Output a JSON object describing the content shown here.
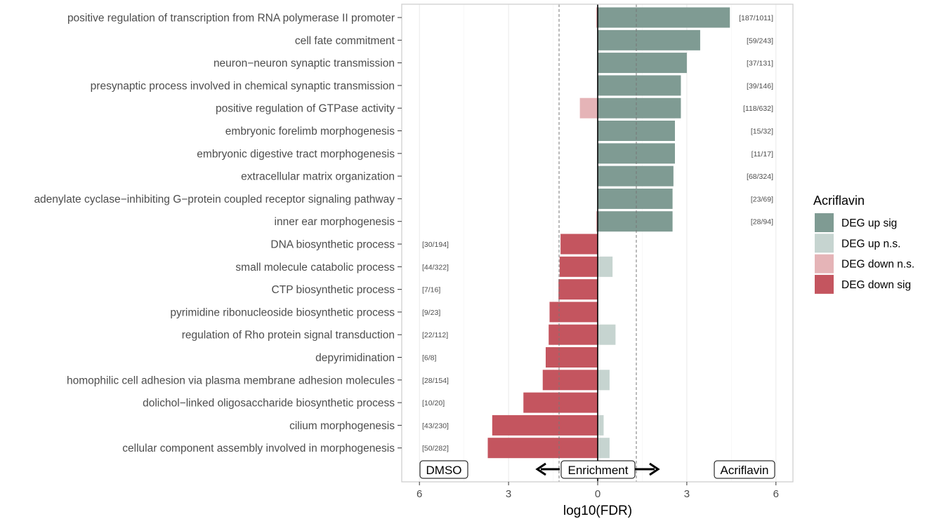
{
  "chart_data": {
    "type": "bar",
    "orientation": "horizontal",
    "xlabel": "log10(FDR)",
    "xlim": [
      -6.6,
      6.6
    ],
    "xticks": [
      -6,
      -3,
      0,
      3,
      6
    ],
    "xtick_labels": [
      "6",
      "3",
      "0",
      "3",
      "6"
    ],
    "threshold_lines": [
      -1.3,
      1.3
    ],
    "grid": true,
    "legend_position": "right",
    "legend": {
      "title": "Acriflavin",
      "entries": [
        {
          "key": "up_sig",
          "label": "DEG up sig",
          "color": "#7f9b93"
        },
        {
          "key": "up_ns",
          "label": "DEG up n.s.",
          "color": "#c6d4d0"
        },
        {
          "key": "down_ns",
          "label": "DEG down n.s.",
          "color": "#e5b4b7"
        },
        {
          "key": "down_sig",
          "label": "DEG down sig",
          "color": "#c4555f"
        }
      ]
    },
    "annotations": {
      "left_box": "DMSO",
      "center_box": "Enrichment",
      "right_box": "Acriflavin"
    },
    "categories": [
      "positive regulation of transcription from RNA polymerase II promoter",
      "cell fate commitment",
      "neuron−neuron synaptic transmission",
      "presynaptic process involved in chemical synaptic transmission",
      "positive regulation of GTPase activity",
      "embryonic forelimb morphogenesis",
      "embryonic digestive tract morphogenesis",
      "extracellular matrix organization",
      "adenylate cyclase−inhibiting G−protein coupled receptor signaling pathway",
      "inner ear morphogenesis",
      "DNA biosynthetic process",
      "small molecule catabolic process",
      "CTP biosynthetic process",
      "pyrimidine ribonucleoside biosynthetic process",
      "regulation of Rho protein signal transduction",
      "depyrimidination",
      "homophilic cell adhesion via plasma membrane adhesion molecules",
      "dolichol−linked oligosaccharide biosynthetic process",
      "cilium morphogenesis",
      "cellular component assembly involved in morphogenesis"
    ],
    "counts": [
      "[187/1011]",
      "[59/243]",
      "[37/131]",
      "[39/146]",
      "[118/632]",
      "[15/32]",
      "[11/17]",
      "[68/324]",
      "[23/69]",
      "[28/94]",
      "[30/194]",
      "[44/322]",
      "[7/16]",
      "[9/23]",
      "[22/112]",
      "[6/8]",
      "[28/154]",
      "[10/20]",
      "[43/230]",
      "[50/282]"
    ],
    "series": [
      {
        "name": "DEG up sig",
        "key": "up_sig",
        "values": [
          4.45,
          3.45,
          3.0,
          2.8,
          2.8,
          2.6,
          2.6,
          2.55,
          2.52,
          2.52,
          0,
          0,
          0,
          0,
          0,
          0,
          0,
          0,
          0,
          0
        ]
      },
      {
        "name": "DEG up n.s.",
        "key": "up_ns",
        "values": [
          0,
          0,
          0,
          0,
          0,
          0,
          0,
          0,
          0,
          0,
          0,
          0.5,
          0,
          0,
          0.6,
          0,
          0.4,
          0,
          0.2,
          0.4
        ]
      },
      {
        "name": "DEG down n.s.",
        "key": "down_ns",
        "values": [
          -0.05,
          0,
          0,
          0,
          -0.6,
          0,
          0,
          0,
          0,
          -0.05,
          0,
          0,
          0,
          0,
          0,
          0,
          0,
          0,
          0,
          0
        ]
      },
      {
        "name": "DEG down sig",
        "key": "down_sig",
        "values": [
          0,
          0,
          0,
          0,
          0,
          0,
          0,
          0,
          0,
          0,
          -1.25,
          -1.28,
          -1.32,
          -1.62,
          -1.65,
          -1.75,
          -1.85,
          -2.5,
          -3.55,
          -3.7
        ]
      }
    ]
  }
}
